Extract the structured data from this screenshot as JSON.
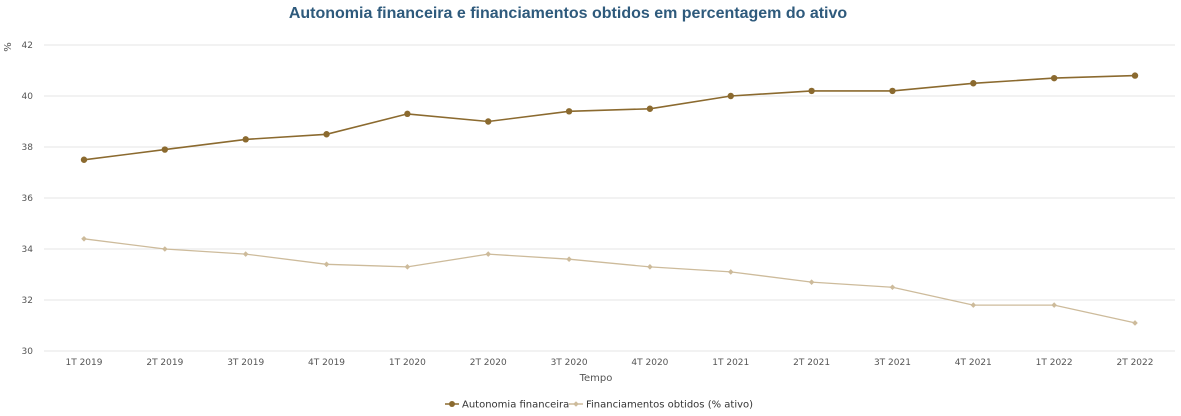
{
  "chart_data": {
    "type": "line",
    "title": "Autonomia financeira e financiamentos obtidos em percentagem do ativo",
    "xlabel": "Tempo",
    "ylabel": "%",
    "ylim": [
      30,
      42
    ],
    "yticks": [
      "30",
      "32",
      "34",
      "36",
      "38",
      "40",
      "42"
    ],
    "categories": [
      "1T 2019",
      "2T 2019",
      "3T 2019",
      "4T 2019",
      "1T 2020",
      "2T 2020",
      "3T 2020",
      "4T 2020",
      "1T 2021",
      "2T 2021",
      "3T 2021",
      "4T 2021",
      "1T 2022",
      "2T 2022"
    ],
    "grid": true,
    "legend_position": "bottom",
    "series": [
      {
        "name": "Autonomia financeira",
        "color": "#8b6a2f",
        "marker": "circle",
        "values": [
          37.5,
          37.9,
          38.3,
          38.5,
          39.3,
          39.0,
          39.4,
          39.5,
          40.0,
          40.2,
          40.2,
          40.5,
          40.7,
          40.8
        ]
      },
      {
        "name": "Financiamentos obtidos (% ativo)",
        "color": "#cdbb9b",
        "marker": "diamond",
        "values": [
          34.4,
          34.0,
          33.8,
          33.4,
          33.3,
          33.8,
          33.6,
          33.3,
          33.1,
          32.7,
          32.5,
          31.8,
          31.8,
          31.1
        ]
      }
    ]
  }
}
